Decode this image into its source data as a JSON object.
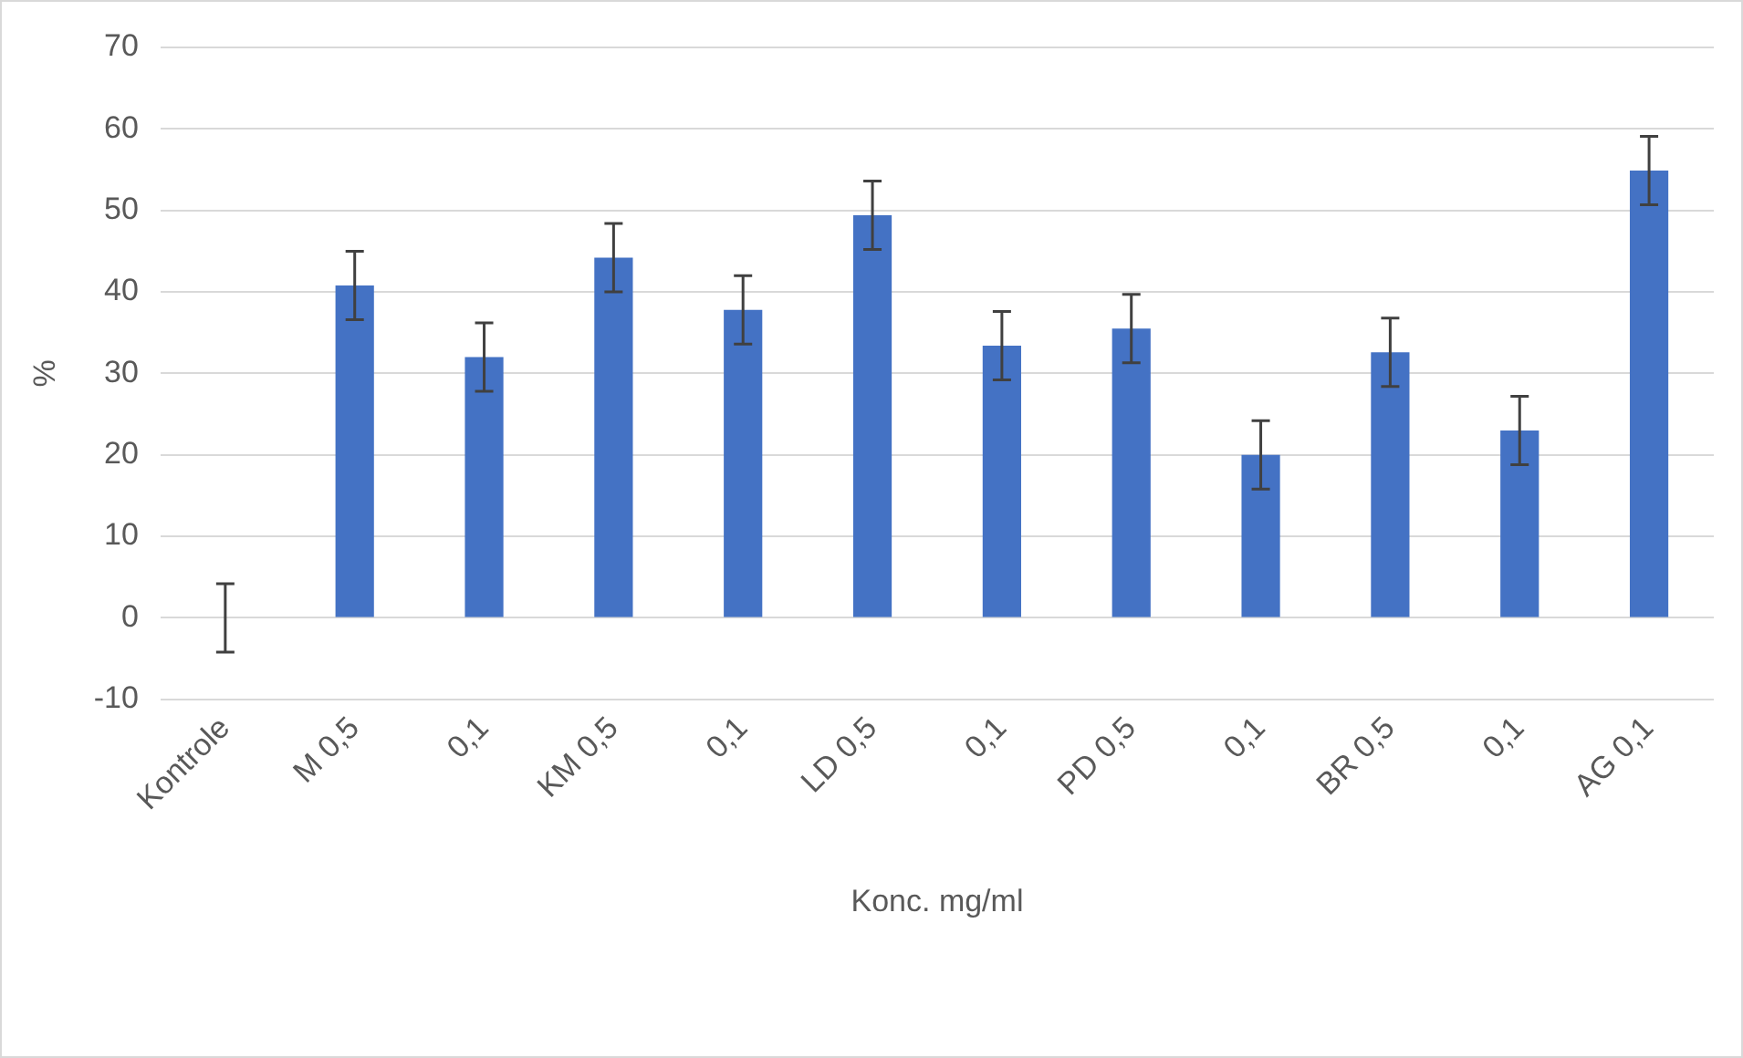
{
  "chart_data": {
    "type": "bar",
    "xlabel": "Konc. mg/ml",
    "ylabel": "%",
    "categories": [
      "Kontrole",
      "M 0,5",
      "0,1",
      "KM 0,5",
      "0,1",
      "LD 0,5",
      "0,1",
      "PD 0,5",
      "0,1",
      "BR 0,5",
      "0,1",
      "AG 0,1"
    ],
    "values": [
      0,
      40.8,
      32,
      44.2,
      37.8,
      49.4,
      33.4,
      35.5,
      20,
      32.6,
      23,
      54.9
    ],
    "errors": [
      4.2,
      4.2,
      4.2,
      4.2,
      4.2,
      4.2,
      4.2,
      4.2,
      4.2,
      4.2,
      4.2,
      4.2
    ],
    "color": "#4472c4",
    "ylim": [
      -10,
      70
    ],
    "yticks": [
      -10,
      0,
      10,
      20,
      30,
      40,
      50,
      60,
      70
    ],
    "grid": "y",
    "legend": false
  }
}
